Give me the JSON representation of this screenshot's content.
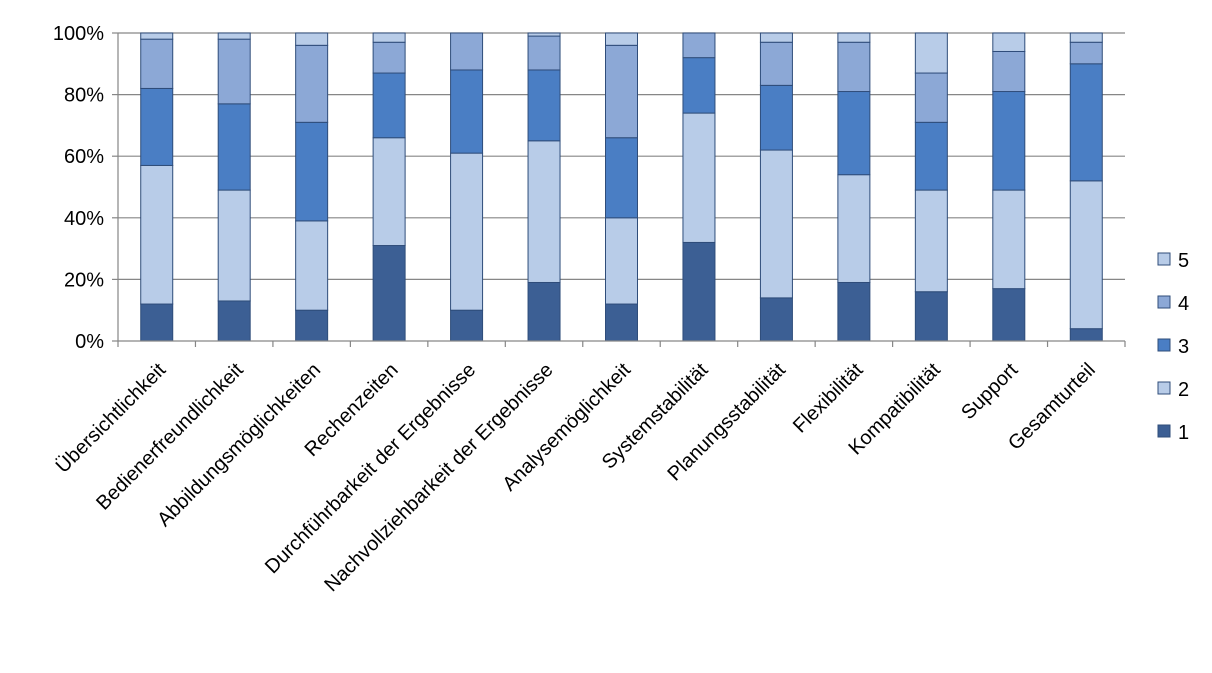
{
  "chart_data": {
    "type": "bar",
    "stacked": true,
    "percent": true,
    "categories": [
      "Übersichtlichkeit",
      "Bedienerfreundlichkeit",
      "Abbildungsmöglichkeiten",
      "Rechenzeiten",
      "Durchführbarkeit der Ergebnisse",
      "Nachvollziehbarkeit der Ergebnisse",
      "Analysemöglichkeit",
      "Systemstabilität",
      "Planungsstabilität",
      "Flexibilität",
      "Kompatibilität",
      "Support",
      "Gesamturteil"
    ],
    "series": [
      {
        "name": "1",
        "color": "#3C5F94",
        "values": [
          12,
          13,
          10,
          31,
          10,
          19,
          12,
          32,
          14,
          19,
          16,
          17,
          4
        ]
      },
      {
        "name": "2",
        "color": "#B8CCE8",
        "values": [
          45,
          36,
          29,
          35,
          51,
          46,
          28,
          42,
          48,
          35,
          33,
          32,
          48
        ]
      },
      {
        "name": "3",
        "color": "#4A7EC4",
        "values": [
          25,
          28,
          32,
          21,
          27,
          23,
          26,
          18,
          21,
          27,
          22,
          32,
          38
        ]
      },
      {
        "name": "4",
        "color": "#8CA8D6",
        "values": [
          16,
          21,
          25,
          10,
          12,
          11,
          30,
          8,
          14,
          16,
          16,
          13,
          7
        ]
      },
      {
        "name": "5",
        "color": "#B8CCE8",
        "values": [
          2,
          2,
          4,
          3,
          0,
          1,
          4,
          0,
          3,
          3,
          13,
          6,
          3
        ]
      }
    ],
    "yticks": [
      "0%",
      "20%",
      "40%",
      "60%",
      "80%",
      "100%"
    ],
    "ylim": [
      0,
      100
    ],
    "grid": true,
    "legend_position": "right",
    "legend_order": [
      "5",
      "4",
      "3",
      "2",
      "1"
    ],
    "title": "",
    "xlabel": "",
    "ylabel": ""
  }
}
